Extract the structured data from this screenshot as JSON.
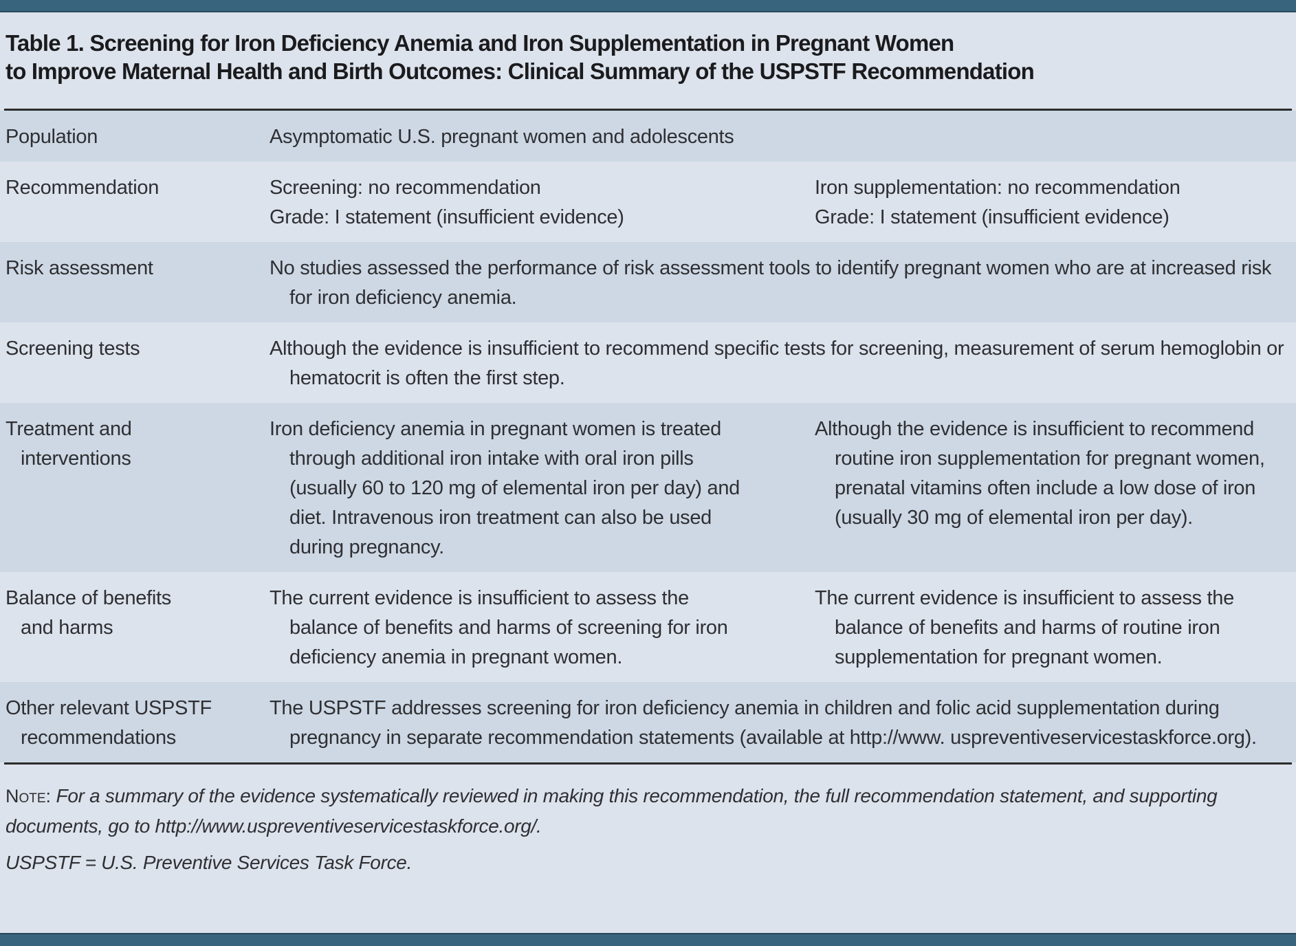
{
  "colors": {
    "bar": "#38647d",
    "bar_edge": "#27485c",
    "page_bg": "#dce3ec",
    "row_shaded": "#cdd8e4",
    "row_white": "#ffffff",
    "title_text": "#1b1b1e",
    "body_text": "#2f2f33",
    "rule": "#2b2b2b"
  },
  "header": {
    "title_lines": [
      "Table 1. Screening for Iron Deficiency Anemia and Iron Supplementation in Pregnant Women",
      "to Improve Maternal Health and Birth Outcomes: Clinical Summary of the USPSTF Recommendation"
    ]
  },
  "table": {
    "rows": [
      {
        "shaded": true,
        "label_lines": [
          "Population"
        ],
        "cells": [
          {
            "span": "full",
            "paragraphs": [
              "Asymptomatic U.S. pregnant women and adolescents"
            ]
          }
        ]
      },
      {
        "shaded": false,
        "label_lines": [
          "Recommendation"
        ],
        "cells": [
          {
            "span": "mid",
            "paragraphs": [
              "Screening: no recommendation",
              "Grade: I statement (insufficient evidence)"
            ]
          },
          {
            "span": "right",
            "paragraphs": [
              "Iron supplementation: no recommendation",
              "Grade: I statement (insufficient evidence)"
            ]
          }
        ]
      },
      {
        "shaded": true,
        "label_lines": [
          "Risk assessment"
        ],
        "cells": [
          {
            "span": "full",
            "paragraphs": [
              "No studies assessed the performance of risk assessment tools to identify pregnant women who are at increased risk for iron deficiency anemia."
            ]
          }
        ]
      },
      {
        "shaded": false,
        "label_lines": [
          "Screening tests"
        ],
        "cells": [
          {
            "span": "full",
            "paragraphs": [
              "Although the evidence is insufficient to recommend specific tests for screening, measurement of serum hemoglobin or hematocrit is often the first step."
            ]
          }
        ]
      },
      {
        "shaded": true,
        "label_lines": [
          "Treatment and",
          "interventions"
        ],
        "cells": [
          {
            "span": "mid",
            "paragraphs": [
              "Iron deficiency anemia in pregnant women is treated through additional iron intake with oral iron pills (usually 60 to 120 mg of elemental iron per day) and diet. Intravenous iron treatment can also be used during pregnancy."
            ]
          },
          {
            "span": "right",
            "paragraphs": [
              "Although the evidence is insufficient to recommend routine iron supplementation for pregnant women, prenatal vitamins often include a low dose of iron (usually 30 mg of elemental iron per day)."
            ]
          }
        ]
      },
      {
        "shaded": false,
        "label_lines": [
          "Balance of benefits",
          "and harms"
        ],
        "cells": [
          {
            "span": "mid",
            "paragraphs": [
              "The current evidence is insufficient to assess the balance of benefits and harms of screening for iron deficiency anemia in pregnant women."
            ]
          },
          {
            "span": "right",
            "paragraphs": [
              "The current evidence is insufficient to assess the balance of benefits and harms of routine iron supplementation for pregnant women."
            ]
          }
        ]
      },
      {
        "shaded": true,
        "label_lines": [
          "Other relevant USPSTF",
          "recommendations"
        ],
        "cells": [
          {
            "span": "full",
            "paragraphs": [
              "The USPSTF addresses screening for iron deficiency anemia in children and folic acid supplementation during pregnancy in separate recommendation statements (available at http://www. uspreventiveservicestaskforce.org)."
            ]
          }
        ]
      }
    ]
  },
  "footnote": {
    "note_label": "Note:",
    "note_text": "For a summary of the evidence systematically reviewed in making this recommendation, the full recommendation statement, and supporting documents, go to http://www.uspreventiveservicestaskforce.org/.",
    "abbreviation": "USPSTF = U.S. Preventive Services Task Force."
  }
}
